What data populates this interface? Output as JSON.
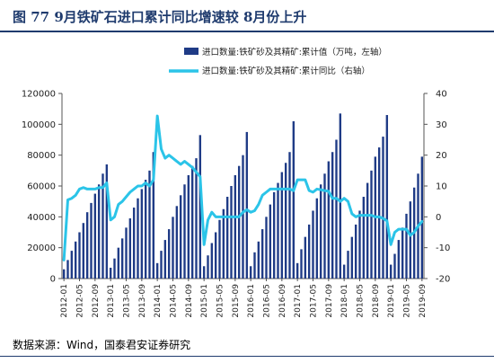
{
  "header": {
    "title": "图 77   9月铁矿石进口累计同比增速较 8月份上升"
  },
  "source": "数据来源：Wind，国泰君安证券研究",
  "colors": {
    "bar": "#1f3b86",
    "line": "#2bc4e8",
    "axis": "#555555",
    "title": "#1f3b6e"
  },
  "chart_data": {
    "type": "bar",
    "legend_position": "top-right",
    "grid": false,
    "x_ticks": [
      "2012-01",
      "2012-05",
      "2012-09",
      "2013-01",
      "2013-05",
      "2013-09",
      "2014-01",
      "2014-05",
      "2014-09",
      "2015-01",
      "2015-05",
      "2015-09",
      "2016-01",
      "2016-05",
      "2016-09",
      "2017-01",
      "2017-05",
      "2017-09",
      "2018-01",
      "2018-05",
      "2018-09",
      "2019-01",
      "2019-05",
      "2019-09"
    ],
    "y_left_ticks": [
      "0",
      "20000",
      "40000",
      "60000",
      "80000",
      "100000",
      "120000"
    ],
    "y_right_ticks": [
      "-20",
      "-10",
      "0",
      "10",
      "20",
      "30",
      "40"
    ],
    "y_left_lim": [
      0,
      120000
    ],
    "y_right_lim": [
      -20,
      40
    ],
    "months": [
      "2012-01",
      "2012-02",
      "2012-03",
      "2012-04",
      "2012-05",
      "2012-06",
      "2012-07",
      "2012-08",
      "2012-09",
      "2012-10",
      "2012-11",
      "2012-12",
      "2013-01",
      "2013-02",
      "2013-03",
      "2013-04",
      "2013-05",
      "2013-06",
      "2013-07",
      "2013-08",
      "2013-09",
      "2013-10",
      "2013-11",
      "2013-12",
      "2014-01",
      "2014-02",
      "2014-03",
      "2014-04",
      "2014-05",
      "2014-06",
      "2014-07",
      "2014-08",
      "2014-09",
      "2014-10",
      "2014-11",
      "2014-12",
      "2015-01",
      "2015-02",
      "2015-03",
      "2015-04",
      "2015-05",
      "2015-06",
      "2015-07",
      "2015-08",
      "2015-09",
      "2015-10",
      "2015-11",
      "2015-12",
      "2016-01",
      "2016-02",
      "2016-03",
      "2016-04",
      "2016-05",
      "2016-06",
      "2016-07",
      "2016-08",
      "2016-09",
      "2016-10",
      "2016-11",
      "2016-12",
      "2017-01",
      "2017-02",
      "2017-03",
      "2017-04",
      "2017-05",
      "2017-06",
      "2017-07",
      "2017-08",
      "2017-09",
      "2017-10",
      "2017-11",
      "2017-12",
      "2018-01",
      "2018-02",
      "2018-03",
      "2018-04",
      "2018-05",
      "2018-06",
      "2018-07",
      "2018-08",
      "2018-09",
      "2018-10",
      "2018-11",
      "2018-12",
      "2019-01",
      "2019-02",
      "2019-03",
      "2019-04",
      "2019-05",
      "2019-06",
      "2019-07",
      "2019-08",
      "2019-09"
    ],
    "series": [
      {
        "name": "进口数量:铁矿砂及其精矿:累计值（万吨，左轴）",
        "type": "bar",
        "axis": "left",
        "values": [
          6000,
          12000,
          18000,
          24000,
          30000,
          36000,
          43000,
          49000,
          55000,
          61000,
          68000,
          74000,
          7000,
          13000,
          20000,
          26000,
          33000,
          39000,
          46000,
          52000,
          58000,
          64000,
          70000,
          82000,
          10000,
          18000,
          25000,
          32000,
          40000,
          47000,
          54000,
          61000,
          67000,
          73000,
          78000,
          93000,
          8000,
          15000,
          23000,
          30000,
          38000,
          45000,
          53000,
          60000,
          67000,
          73000,
          80000,
          95000,
          8000,
          17000,
          24000,
          32000,
          40000,
          48000,
          56000,
          62000,
          69000,
          75000,
          82000,
          102000,
          10000,
          19000,
          27000,
          35000,
          44000,
          52000,
          61000,
          68000,
          76000,
          82000,
          90000,
          107000,
          9000,
          18000,
          27000,
          35000,
          44000,
          53000,
          62000,
          70000,
          79000,
          85000,
          92000,
          106000,
          9000,
          16000,
          25000,
          33000,
          42000,
          50000,
          59000,
          68000,
          79000
        ]
      },
      {
        "name": "进口数量:铁矿砂及其精矿:累计同比（右轴）",
        "type": "line",
        "axis": "right",
        "values": [
          -14,
          5.5,
          6,
          7,
          9,
          9.5,
          9,
          9,
          9,
          9.5,
          9.5,
          11,
          -1,
          0,
          4,
          5,
          6.5,
          8,
          9,
          10,
          10,
          11,
          10,
          12,
          32.7,
          22,
          19,
          20,
          19,
          18,
          17,
          18,
          17,
          16,
          14.5,
          13,
          -9,
          -1,
          1.5,
          0,
          0,
          0,
          0,
          0,
          0,
          0,
          1.5,
          2.3,
          1.5,
          2,
          4,
          7,
          8,
          9,
          9,
          9,
          9,
          9,
          9,
          8.5,
          12,
          12,
          12,
          8.5,
          8,
          9,
          8.8,
          8.5,
          8.3,
          6,
          6,
          5,
          6,
          5,
          1,
          0,
          0.5,
          0.5,
          0.5,
          0.5,
          0,
          0,
          -0.5,
          -1.3,
          -9,
          -5,
          -4,
          -4,
          -4,
          -6,
          -5,
          -3,
          -1.5
        ]
      }
    ]
  }
}
